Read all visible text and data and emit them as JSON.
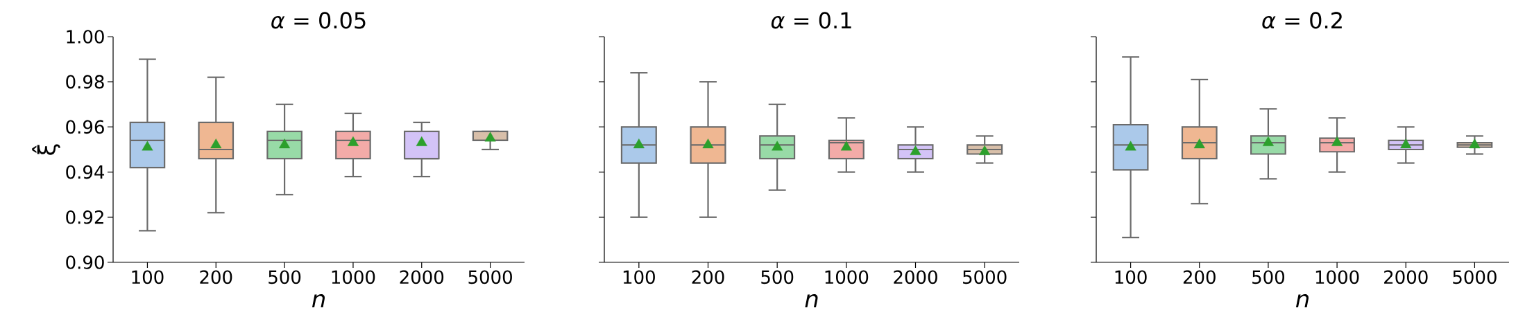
{
  "chart_data": [
    {
      "type": "box",
      "title": "*α* = 0.05",
      "xlabel": "n",
      "ylabel": "ξ̂",
      "categories": [
        "100",
        "200",
        "500",
        "1000",
        "2000",
        "5000"
      ],
      "colors": [
        "#abc9ea",
        "#efb792",
        "#98daa7",
        "#f3aba8",
        "#d3c3f7",
        "#d8bfa9"
      ],
      "ylim": [
        0.9,
        1.0
      ],
      "yticks": [
        {
          "value": 0.9,
          "label": "0.90"
        },
        {
          "value": 0.92,
          "label": "0.92"
        },
        {
          "value": 0.94,
          "label": "0.94"
        },
        {
          "value": 0.96,
          "label": "0.96"
        },
        {
          "value": 0.98,
          "label": "0.98"
        },
        {
          "value": 1.0,
          "label": "1.00"
        }
      ],
      "marker": "triangle",
      "boxes": [
        {
          "low": 0.914,
          "q1": 0.942,
          "median": 0.954,
          "q3": 0.962,
          "high": 0.99,
          "mean": 0.951
        },
        {
          "low": 0.922,
          "q1": 0.946,
          "median": 0.95,
          "q3": 0.962,
          "high": 0.982,
          "mean": 0.952
        },
        {
          "low": 0.93,
          "q1": 0.946,
          "median": 0.954,
          "q3": 0.958,
          "high": 0.97,
          "mean": 0.952
        },
        {
          "low": 0.938,
          "q1": 0.946,
          "median": 0.954,
          "q3": 0.958,
          "high": 0.966,
          "mean": 0.953
        },
        {
          "low": 0.938,
          "q1": 0.946,
          "median": 0.946,
          "q3": 0.958,
          "high": 0.962,
          "mean": 0.953
        },
        {
          "low": 0.95,
          "q1": 0.954,
          "median": 0.954,
          "q3": 0.958,
          "high": 0.958,
          "mean": 0.955
        }
      ]
    },
    {
      "type": "box",
      "title": "*α* = 0.1",
      "xlabel": "n",
      "categories": [
        "100",
        "200",
        "500",
        "1000",
        "2000",
        "5000"
      ],
      "colors": [
        "#abc9ea",
        "#efb792",
        "#98daa7",
        "#f3aba8",
        "#d3c3f7",
        "#d8bfa9"
      ],
      "ylim": [
        0.9,
        1.0
      ],
      "yticks": [
        0.9,
        0.92,
        0.94,
        0.96,
        0.98,
        1.0
      ],
      "tick_labels": "x",
      "marker": "triangle",
      "boxes": [
        {
          "low": 0.92,
          "q1": 0.944,
          "median": 0.952,
          "q3": 0.96,
          "high": 0.984,
          "mean": 0.952
        },
        {
          "low": 0.92,
          "q1": 0.944,
          "median": 0.952,
          "q3": 0.96,
          "high": 0.98,
          "mean": 0.952
        },
        {
          "low": 0.932,
          "q1": 0.946,
          "median": 0.952,
          "q3": 0.956,
          "high": 0.97,
          "mean": 0.951
        },
        {
          "low": 0.94,
          "q1": 0.946,
          "median": 0.953,
          "q3": 0.954,
          "high": 0.964,
          "mean": 0.951
        },
        {
          "low": 0.94,
          "q1": 0.946,
          "median": 0.95,
          "q3": 0.952,
          "high": 0.96,
          "mean": 0.949
        },
        {
          "low": 0.944,
          "q1": 0.948,
          "median": 0.95,
          "q3": 0.952,
          "high": 0.956,
          "mean": 0.949
        }
      ]
    },
    {
      "type": "box",
      "title": "*α* = 0.2",
      "xlabel": "n",
      "categories": [
        "100",
        "200",
        "500",
        "1000",
        "2000",
        "5000"
      ],
      "colors": [
        "#abc9ea",
        "#efb792",
        "#98daa7",
        "#f3aba8",
        "#d3c3f7",
        "#d8bfa9"
      ],
      "ylim": [
        0.9,
        1.0
      ],
      "yticks": [
        0.9,
        0.92,
        0.94,
        0.96,
        0.98,
        1.0
      ],
      "tick_labels": "x",
      "marker": "triangle",
      "boxes": [
        {
          "low": 0.911,
          "q1": 0.941,
          "median": 0.952,
          "q3": 0.961,
          "high": 0.991,
          "mean": 0.951
        },
        {
          "low": 0.926,
          "q1": 0.946,
          "median": 0.953,
          "q3": 0.96,
          "high": 0.981,
          "mean": 0.952
        },
        {
          "low": 0.937,
          "q1": 0.948,
          "median": 0.953,
          "q3": 0.956,
          "high": 0.968,
          "mean": 0.953
        },
        {
          "low": 0.94,
          "q1": 0.949,
          "median": 0.953,
          "q3": 0.955,
          "high": 0.964,
          "mean": 0.953
        },
        {
          "low": 0.944,
          "q1": 0.95,
          "median": 0.952,
          "q3": 0.954,
          "high": 0.96,
          "mean": 0.952
        },
        {
          "low": 0.948,
          "q1": 0.951,
          "median": 0.952,
          "q3": 0.953,
          "high": 0.956,
          "mean": 0.952
        }
      ]
    }
  ]
}
